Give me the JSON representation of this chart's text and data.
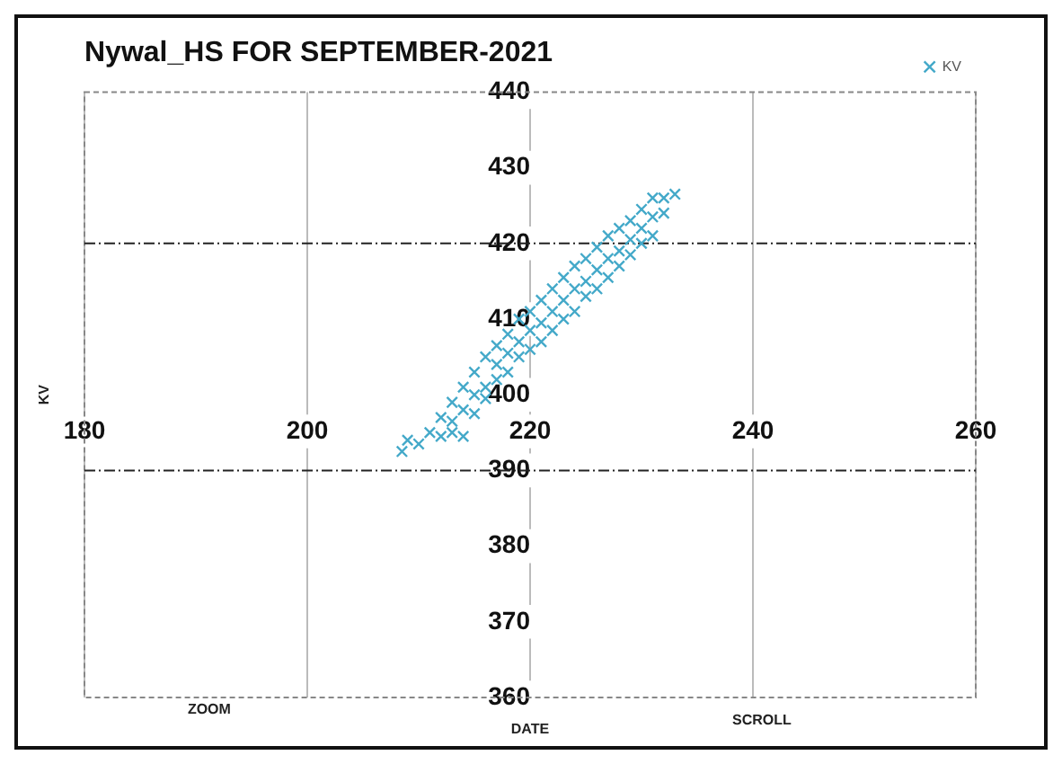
{
  "chart_data": {
    "type": "scatter",
    "title": "Nywal_HS FOR SEPTEMBER-2021",
    "xlabel": "DATE",
    "ylabel": "KV",
    "annotations": [
      "ZOOM",
      "SCROLL"
    ],
    "xlim": [
      180,
      260
    ],
    "xticks": [
      180,
      200,
      220,
      240,
      260
    ],
    "ylim": [
      360,
      440
    ],
    "yticks": [
      360,
      370,
      380,
      390,
      400,
      410,
      420,
      430,
      440
    ],
    "grid": "x",
    "legend": "top right",
    "marker": "cross",
    "ref_lines": [
      {
        "axis": "y",
        "value": 390,
        "line_style": "dashed"
      },
      {
        "axis": "y",
        "value": 420,
        "line_style": "dashed"
      }
    ],
    "series": [
      {
        "name": "KV",
        "color": "#44a9c9",
        "x": [
          208.5,
          209,
          210,
          211,
          212,
          213,
          214,
          212,
          213,
          215,
          216,
          213,
          214,
          214,
          215,
          215,
          216,
          216,
          217,
          217,
          217,
          218,
          218,
          218,
          219,
          219,
          219,
          220,
          220,
          220,
          221,
          221,
          221,
          222,
          222,
          222,
          223,
          223,
          223,
          224,
          224,
          224,
          225,
          225,
          225,
          226,
          226,
          226,
          227,
          227,
          227,
          228,
          228,
          228,
          229,
          229,
          229,
          230,
          230,
          230,
          231,
          231,
          231,
          232,
          232,
          233
        ],
        "values": [
          392.5,
          394,
          393.5,
          395,
          394.5,
          395,
          394.5,
          397,
          396.5,
          397.5,
          399.5,
          399,
          398,
          401,
          400,
          403,
          401,
          405,
          402,
          404,
          406.5,
          403,
          405.5,
          408,
          405,
          407,
          410,
          406,
          408.5,
          411,
          407,
          409.5,
          412.5,
          408.5,
          411,
          414,
          410,
          412.5,
          415.5,
          411,
          414,
          417,
          413,
          415,
          418,
          414,
          416.5,
          419.5,
          415.5,
          418,
          421,
          417,
          419,
          422,
          418.5,
          420.5,
          423,
          420,
          422,
          424.5,
          421,
          423.5,
          426,
          424,
          426,
          426.5
        ]
      }
    ]
  }
}
